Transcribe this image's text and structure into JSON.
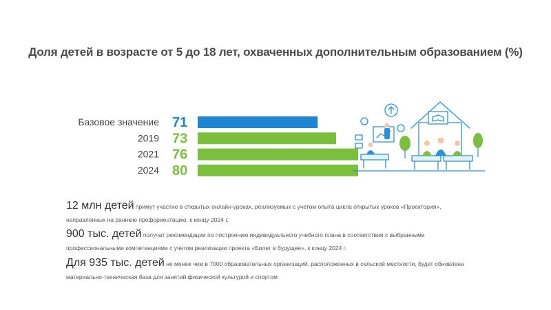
{
  "title": "Доля детей в возрасте от 5 до 18 лет, охваченных дополнительным образованием  (%)",
  "chart_data": {
    "type": "bar",
    "orientation": "horizontal",
    "categories": [
      "Базовое значение",
      "2019",
      "2021",
      "2024"
    ],
    "values": [
      71,
      73,
      76,
      80
    ],
    "value_labels": [
      "71",
      "73",
      "76",
      "80"
    ],
    "title": "Доля детей в возрасте от 5 до 18 лет, охваченных дополнительным образованием  (%)",
    "xlabel": "",
    "ylabel": "",
    "colors": [
      "#1f87d1",
      "#7bbf3f",
      "#7bbf3f",
      "#7bbf3f"
    ],
    "grid": false,
    "legend": "none"
  },
  "stats": [
    {
      "headline": "12 млн детей",
      "text": " примут участие в открытых онлайн-уроках, реализуемых с учетом опыта цикла открытых уроков «Проектория»,",
      "text2": "направленных на раннюю профориентацию, к концу 2024 г."
    },
    {
      "headline": "900 тыс. детей",
      "text": " получат рекомендации по построению индивидуального учебного плана в соответствии с выбранными",
      "text2": "профессиональными компетенциями с учетом реализации проекта «Билет в будущее», к концу 2024 г."
    },
    {
      "headline": "Для 935 тыс. детей",
      "text": " не менее чем в 7000 образовательных организаций, расположенных в сельской местности, будет обновлена",
      "text2": "материально-техническая база для занятий физической культурой и спортом"
    }
  ],
  "illustration": {
    "icon": "classroom-illustration-icon",
    "accent": "#2a92d6"
  }
}
